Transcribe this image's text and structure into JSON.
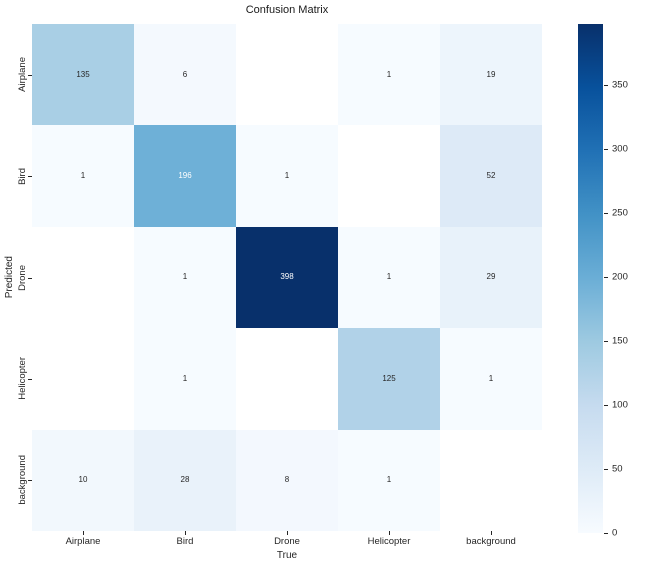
{
  "window": {
    "background": "#ffffff"
  },
  "chart_data": {
    "type": "heatmap",
    "title": "Confusion Matrix",
    "xlabel": "True",
    "ylabel": "Predicted",
    "x_categories": [
      "Airplane",
      "Bird",
      "Drone",
      "Helicopter",
      "background"
    ],
    "y_categories": [
      "Airplane",
      "Bird",
      "Drone",
      "Helicopter",
      "background"
    ],
    "matrix": [
      [
        135,
        6,
        null,
        1,
        19
      ],
      [
        1,
        196,
        1,
        null,
        52
      ],
      [
        null,
        1,
        398,
        1,
        29
      ],
      [
        null,
        1,
        null,
        125,
        1
      ],
      [
        10,
        28,
        8,
        1,
        null
      ]
    ],
    "vmin": 0,
    "vmax": 398,
    "colormap": "Blues",
    "colormap_stops": [
      "#f7fbff",
      "#deebf7",
      "#c6dbef",
      "#9ecae1",
      "#6baed6",
      "#4292c6",
      "#2171b5",
      "#08519c",
      "#08306b"
    ],
    "blank_cell_color": "#ffffff",
    "annotation_colors": {
      "on_light": "#262626",
      "on_dark": "#ffffff"
    },
    "colorbar": {
      "position": "right",
      "ticks": [
        0,
        50,
        100,
        150,
        200,
        250,
        300,
        350
      ]
    },
    "grid": false,
    "legend": false
  }
}
